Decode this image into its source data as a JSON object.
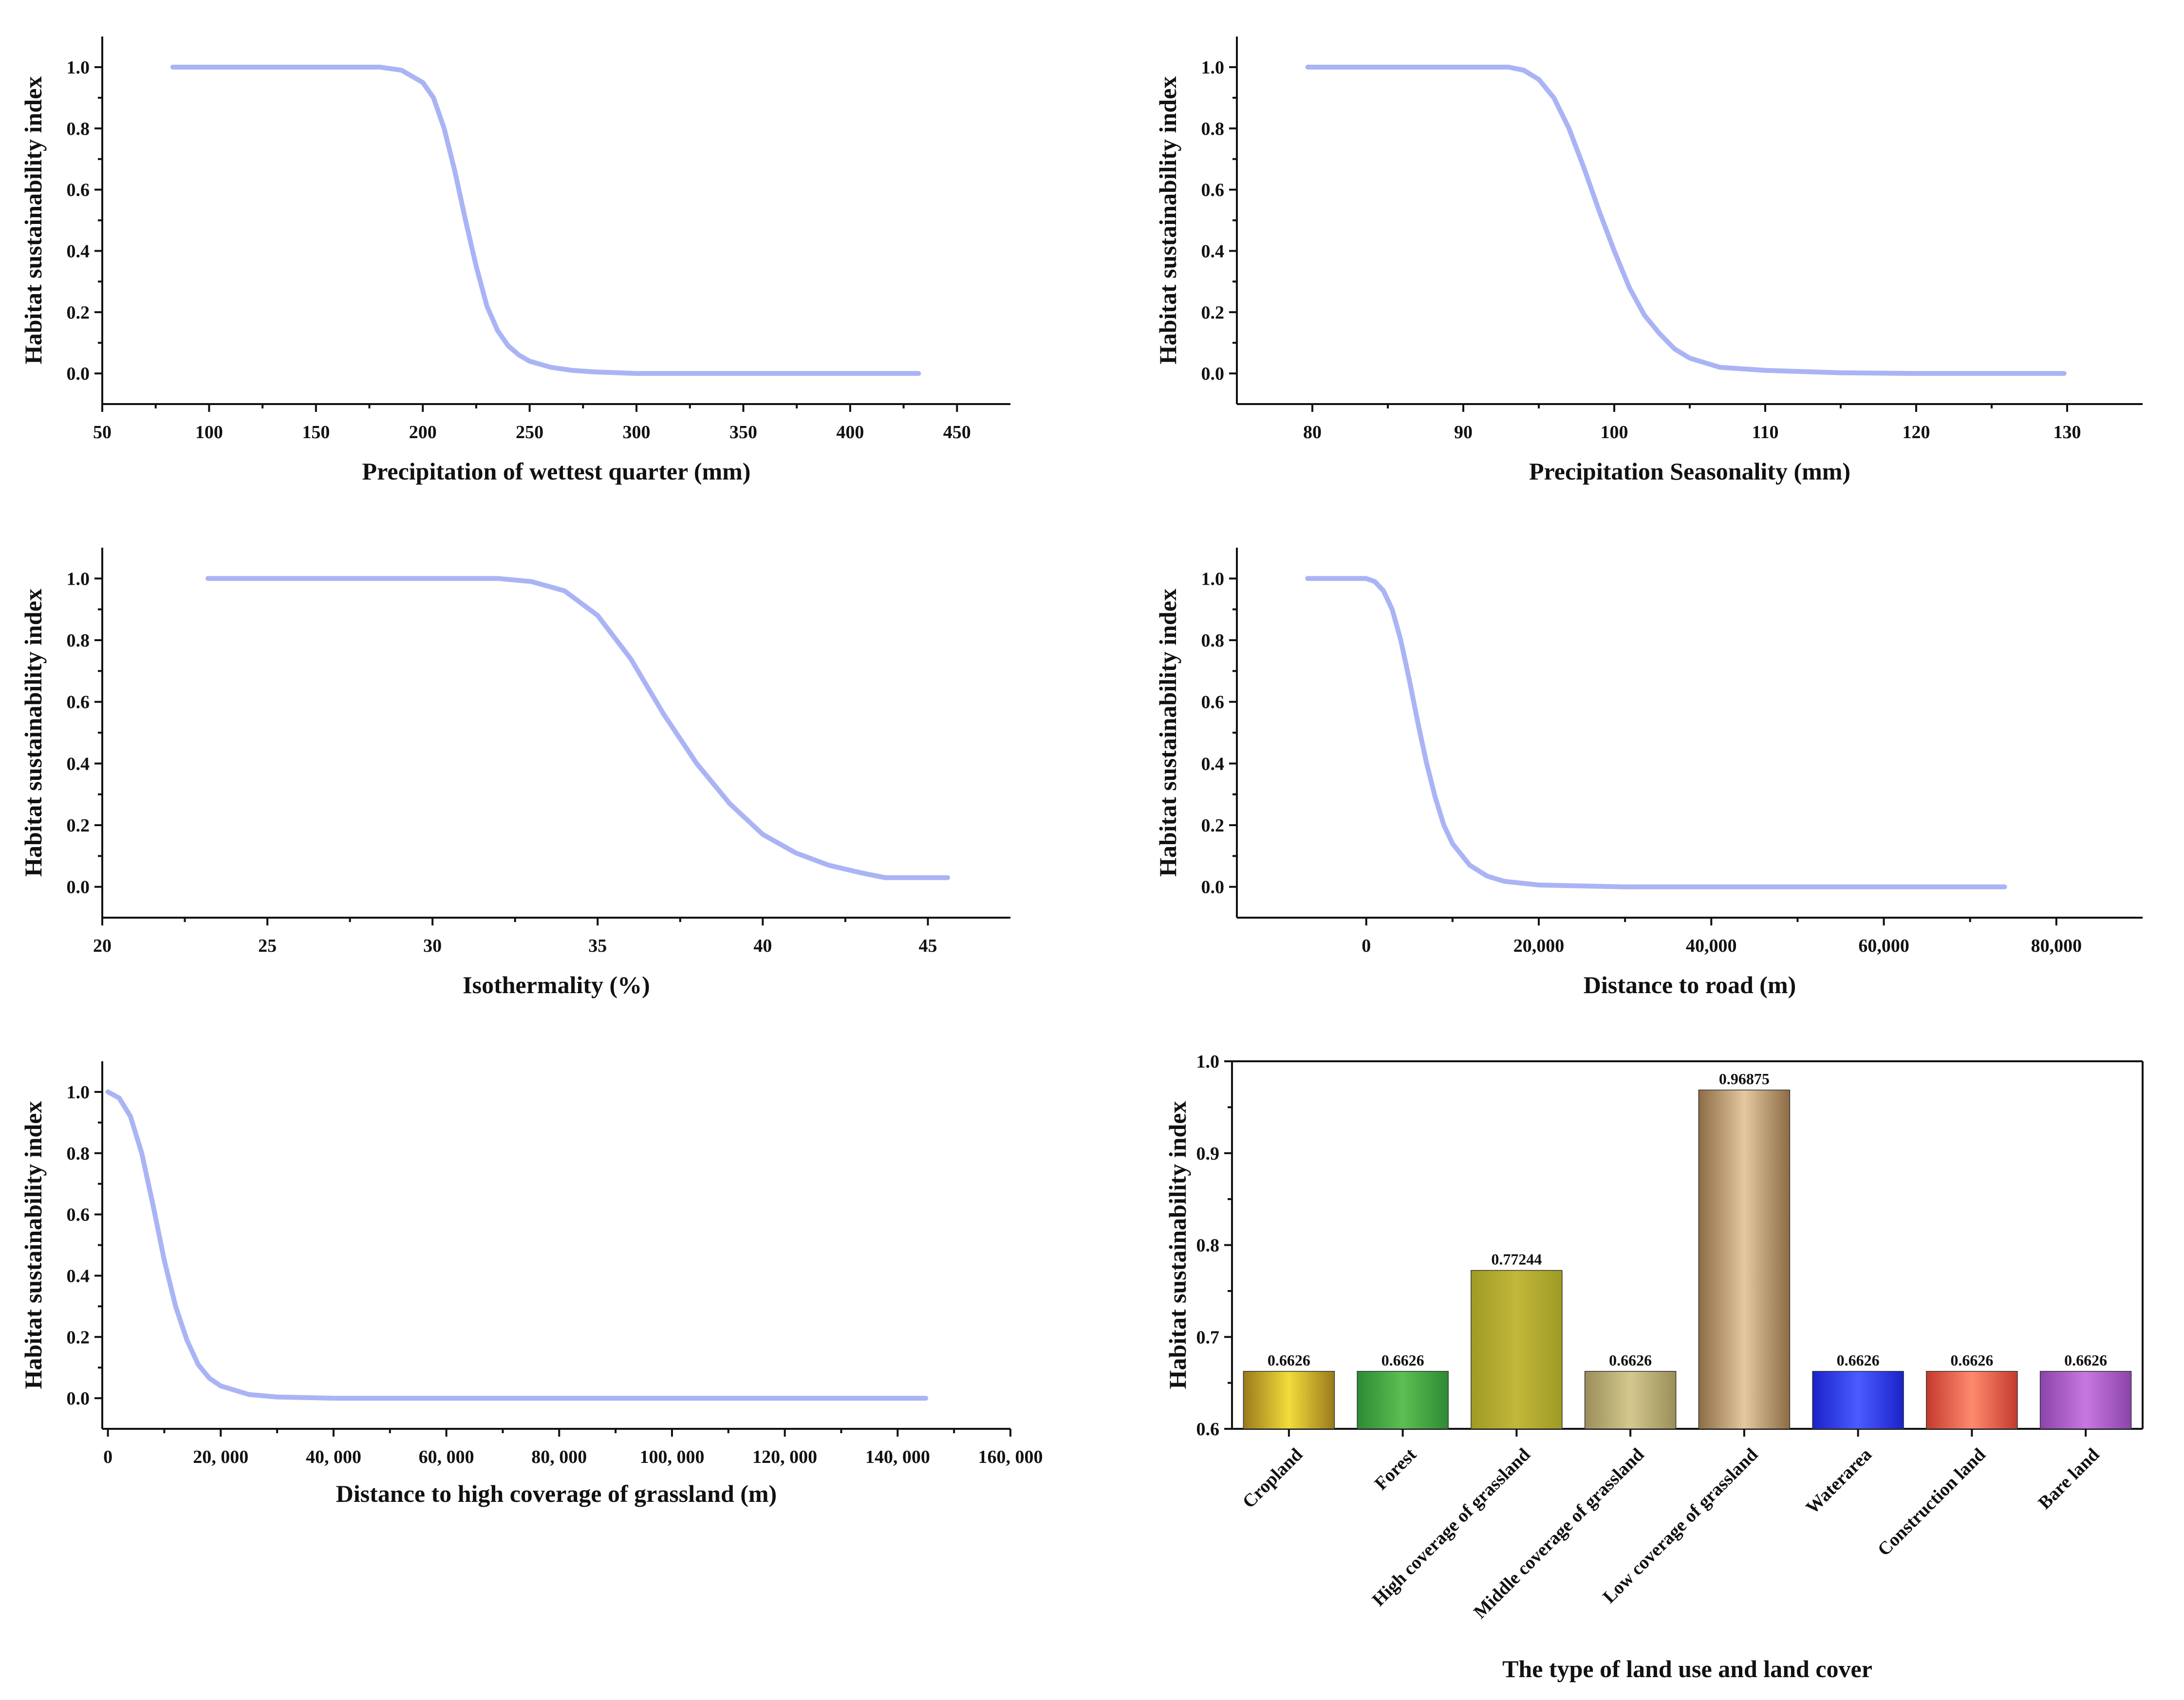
{
  "chart_data": [
    {
      "type": "line",
      "xlabel": "Precipitation of wettest quarter (mm)",
      "ylabel": "Habitat sustainability index",
      "xlim": [
        50,
        475
      ],
      "ylim": [
        -0.1,
        1.1
      ],
      "xticks": [
        50,
        100,
        150,
        200,
        250,
        300,
        350,
        400,
        450
      ],
      "xtick_labels": [
        "50",
        "100",
        "150",
        "200",
        "250",
        "300",
        "350",
        "400",
        "450"
      ],
      "yticks": [
        0.0,
        0.2,
        0.4,
        0.6,
        0.8,
        1.0
      ],
      "ytick_labels": [
        "0.0",
        "0.2",
        "0.4",
        "0.6",
        "0.8",
        "1.0"
      ],
      "series": [
        {
          "color": "#aab4f5",
          "x": [
            83,
            150,
            180,
            190,
            200,
            205,
            210,
            215,
            220,
            225,
            230,
            235,
            240,
            245,
            250,
            260,
            270,
            280,
            300,
            350,
            400,
            432
          ],
          "y": [
            1.0,
            1.0,
            1.0,
            0.99,
            0.95,
            0.9,
            0.8,
            0.66,
            0.5,
            0.35,
            0.22,
            0.14,
            0.09,
            0.06,
            0.04,
            0.02,
            0.01,
            0.005,
            0.0,
            0.0,
            0.0,
            0.0
          ]
        }
      ]
    },
    {
      "type": "line",
      "xlabel": "Precipitation Seasonality (mm)",
      "ylabel": "Habitat sustainability index",
      "xlim": [
        75,
        135
      ],
      "ylim": [
        -0.1,
        1.1
      ],
      "xticks": [
        80,
        90,
        100,
        110,
        120,
        130
      ],
      "xtick_labels": [
        "80",
        "90",
        "100",
        "110",
        "120",
        "130"
      ],
      "yticks": [
        0.0,
        0.2,
        0.4,
        0.6,
        0.8,
        1.0
      ],
      "ytick_labels": [
        "0.0",
        "0.2",
        "0.4",
        "0.6",
        "0.8",
        "1.0"
      ],
      "series": [
        {
          "color": "#aab4f5",
          "x": [
            79.7,
            85,
            90,
            93,
            94,
            95,
            96,
            97,
            98,
            99,
            100,
            101,
            102,
            103,
            104,
            105,
            107,
            110,
            115,
            120,
            129.8
          ],
          "y": [
            1.0,
            1.0,
            1.0,
            1.0,
            0.99,
            0.96,
            0.9,
            0.8,
            0.67,
            0.53,
            0.4,
            0.28,
            0.19,
            0.13,
            0.08,
            0.05,
            0.02,
            0.01,
            0.002,
            0.0,
            0.0
          ]
        }
      ]
    },
    {
      "type": "line",
      "xlabel": "Isothermality (%)",
      "ylabel": "Habitat sustainability index",
      "xlim": [
        20,
        47.5
      ],
      "ylim": [
        -0.1,
        1.1
      ],
      "xticks": [
        20,
        25,
        30,
        35,
        40,
        45
      ],
      "xtick_labels": [
        "20",
        "25",
        "30",
        "35",
        "40",
        "45"
      ],
      "yticks": [
        0.0,
        0.2,
        0.4,
        0.6,
        0.8,
        1.0
      ],
      "ytick_labels": [
        "0.0",
        "0.2",
        "0.4",
        "0.6",
        "0.8",
        "1.0"
      ],
      "series": [
        {
          "color": "#aab4f5",
          "x": [
            23.2,
            27,
            30,
            32,
            33,
            34,
            35,
            36,
            37,
            38,
            39,
            40,
            41,
            42,
            43,
            43.7,
            45.6
          ],
          "y": [
            1.0,
            1.0,
            1.0,
            1.0,
            0.99,
            0.96,
            0.88,
            0.74,
            0.56,
            0.4,
            0.27,
            0.17,
            0.11,
            0.07,
            0.045,
            0.03,
            0.03
          ]
        }
      ]
    },
    {
      "type": "line",
      "xlabel": "Distance to road (m)",
      "ylabel": "Habitat sustainability index",
      "xlim": [
        -15000,
        90000
      ],
      "ylim": [
        -0.1,
        1.1
      ],
      "xticks": [
        0,
        20000,
        40000,
        60000,
        80000
      ],
      "xtick_labels": [
        "0",
        "20,000",
        "40,000",
        "60,000",
        "80,000"
      ],
      "yticks": [
        0.0,
        0.2,
        0.4,
        0.6,
        0.8,
        1.0
      ],
      "ytick_labels": [
        "0.0",
        "0.2",
        "0.4",
        "0.6",
        "0.8",
        "1.0"
      ],
      "series": [
        {
          "color": "#aab4f5",
          "x": [
            -6800,
            -2000,
            0,
            1000,
            2000,
            3000,
            4000,
            5000,
            6000,
            7000,
            8000,
            9000,
            10000,
            12000,
            14000,
            16000,
            20000,
            30000,
            50000,
            74000
          ],
          "y": [
            1.0,
            1.0,
            1.0,
            0.99,
            0.96,
            0.9,
            0.8,
            0.67,
            0.53,
            0.4,
            0.29,
            0.2,
            0.14,
            0.07,
            0.035,
            0.018,
            0.006,
            0.0,
            0.0,
            0.0
          ]
        }
      ]
    },
    {
      "type": "line",
      "xlabel": "Distance to high coverage of grassland (m)",
      "ylabel": "Habitat sustainability index",
      "xlim": [
        -1000,
        160000
      ],
      "ylim": [
        -0.1,
        1.1
      ],
      "xticks": [
        0,
        20000,
        40000,
        60000,
        80000,
        100000,
        120000,
        140000,
        160000
      ],
      "xtick_labels": [
        "0",
        "20, 000",
        "40, 000",
        "60, 000",
        "80, 000",
        "100, 000",
        "120, 000",
        "140, 000",
        "160, 000"
      ],
      "yticks": [
        0.0,
        0.2,
        0.4,
        0.6,
        0.8,
        1.0
      ],
      "ytick_labels": [
        "0.0",
        "0.2",
        "0.4",
        "0.6",
        "0.8",
        "1.0"
      ],
      "series": [
        {
          "color": "#aab4f5",
          "x": [
            0,
            2000,
            4000,
            6000,
            8000,
            10000,
            12000,
            14000,
            16000,
            18000,
            20000,
            25000,
            30000,
            40000,
            60000,
            100000,
            145000
          ],
          "y": [
            1.0,
            0.98,
            0.92,
            0.8,
            0.63,
            0.45,
            0.3,
            0.19,
            0.11,
            0.065,
            0.04,
            0.012,
            0.004,
            0.0,
            0.0,
            0.0,
            0.0
          ]
        }
      ]
    },
    {
      "type": "bar",
      "xlabel": "The type of land use and land cover",
      "ylabel": "Habitat sustainability index",
      "ylim": [
        0.6,
        1.0
      ],
      "yticks": [
        0.6,
        0.7,
        0.8,
        0.9,
        1.0
      ],
      "ytick_labels": [
        "0.6",
        "0.7",
        "0.8",
        "0.9",
        "1.0"
      ],
      "categories": [
        "Cropland",
        "Forest",
        "High coverage of grassland",
        "Middle coverage of grassland",
        "Low coverage of grassland",
        "Waterarea",
        "Construction land",
        "Bare land"
      ],
      "values": [
        0.6626,
        0.6626,
        0.77244,
        0.6626,
        0.96875,
        0.6626,
        0.6626,
        0.6626
      ],
      "value_labels": [
        "0.6626",
        "0.6626",
        "0.77244",
        "0.6626",
        "0.96875",
        "0.6626",
        "0.6626",
        "0.6626"
      ],
      "bar_colors": [
        [
          "#9a7a1c",
          "#f2dc3a"
        ],
        [
          "#2e8a34",
          "#5cbf52"
        ],
        [
          "#9e9a24",
          "#c2b83a"
        ],
        [
          "#9a8e5a",
          "#d4c88e"
        ],
        [
          "#8c6c44",
          "#e4c8a0"
        ],
        [
          "#1a22c8",
          "#4a5cff"
        ],
        [
          "#c43a2e",
          "#ff8a6e"
        ],
        [
          "#8a44aa",
          "#c878e0"
        ]
      ]
    }
  ]
}
